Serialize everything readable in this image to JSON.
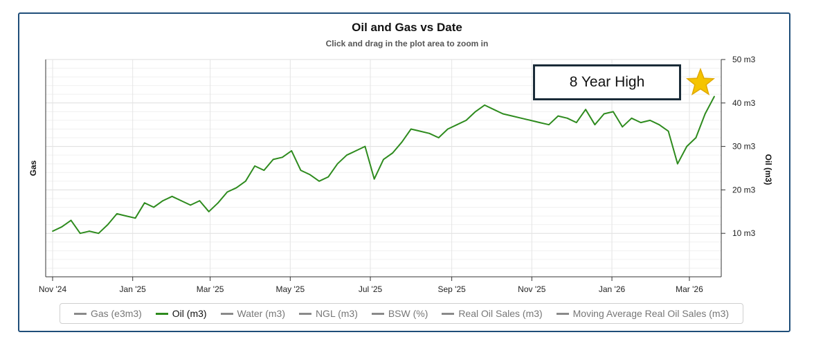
{
  "title": "Oil and Gas vs Date",
  "subtitle": "Click and drag in the plot area to zoom in",
  "callout": {
    "label": "8 Year High",
    "icon": "star-icon",
    "icon_color": "#f5c400"
  },
  "legend": [
    {
      "label": "Gas (e3m3)",
      "active": false
    },
    {
      "label": "Oil (m3)",
      "active": true
    },
    {
      "label": "Water (m3)",
      "active": false
    },
    {
      "label": "NGL (m3)",
      "active": false
    },
    {
      "label": "BSW (%)",
      "active": false
    },
    {
      "label": "Real Oil Sales (m3)",
      "active": false
    },
    {
      "label": "Moving Average Real Oil Sales (m3)",
      "active": false
    }
  ],
  "colors": {
    "oil": "#2e8b1e",
    "frame": "#1f4e79",
    "legend_inactive": "#8a8a8a"
  },
  "chart_data": {
    "type": "line",
    "title": "Oil and Gas vs Date",
    "subtitle": "Click and drag in the plot area to zoom in",
    "ylabel_left": "Gas",
    "ylabel_right": "Oil (m3)",
    "x_ticks": [
      "Nov '24",
      "Jan '25",
      "Mar '25",
      "May '25",
      "Jul '25",
      "Sep '25",
      "Nov '25",
      "Jan '26",
      "Mar '26"
    ],
    "y_right_ticks": [
      "10 m3",
      "20 m3",
      "30 m3",
      "40 m3",
      "50 m3"
    ],
    "ylim": [
      0,
      50
    ],
    "xlim": [
      "2024-11-01",
      "2026-03-20"
    ],
    "grid": true,
    "legend_position": "bottom",
    "series": [
      {
        "name": "Oil (m3)",
        "x": [
          "2024-11-01",
          "2024-11-08",
          "2024-11-15",
          "2024-11-22",
          "2024-11-29",
          "2024-12-06",
          "2024-12-13",
          "2024-12-20",
          "2024-12-27",
          "2025-01-03",
          "2025-01-10",
          "2025-01-17",
          "2025-01-24",
          "2025-01-31",
          "2025-02-07",
          "2025-02-14",
          "2025-02-21",
          "2025-02-28",
          "2025-03-07",
          "2025-03-14",
          "2025-03-21",
          "2025-03-28",
          "2025-04-04",
          "2025-04-11",
          "2025-04-18",
          "2025-04-25",
          "2025-05-02",
          "2025-05-09",
          "2025-05-16",
          "2025-05-23",
          "2025-05-30",
          "2025-06-06",
          "2025-06-13",
          "2025-06-20",
          "2025-06-27",
          "2025-07-04",
          "2025-07-11",
          "2025-07-18",
          "2025-07-25",
          "2025-08-01",
          "2025-08-08",
          "2025-08-15",
          "2025-08-22",
          "2025-08-29",
          "2025-09-05",
          "2025-09-12",
          "2025-09-19",
          "2025-09-26",
          "2025-10-03",
          "2025-10-10",
          "2025-10-17",
          "2025-10-24",
          "2025-10-31",
          "2025-11-07",
          "2025-11-14",
          "2025-11-21",
          "2025-11-28",
          "2025-12-05",
          "2025-12-12",
          "2025-12-19",
          "2025-12-26",
          "2026-01-02",
          "2026-01-09",
          "2026-01-16",
          "2026-01-23",
          "2026-01-30",
          "2026-02-06",
          "2026-02-13",
          "2026-02-20",
          "2026-02-27",
          "2026-03-06",
          "2026-03-13",
          "2026-03-20"
        ],
        "values": [
          10.5,
          11.5,
          13.0,
          10.0,
          10.5,
          10.0,
          12.0,
          14.5,
          14.0,
          13.5,
          17.0,
          16.0,
          17.5,
          18.5,
          17.5,
          16.5,
          17.5,
          15.0,
          17.0,
          19.5,
          20.5,
          22.0,
          25.5,
          24.5,
          27.0,
          27.5,
          29.0,
          24.5,
          23.5,
          22.0,
          23.0,
          26.0,
          28.0,
          29.0,
          30.0,
          22.5,
          27.0,
          28.5,
          31.0,
          34.0,
          33.5,
          33.0,
          32.0,
          34.0,
          35.0,
          36.0,
          38.0,
          39.5,
          38.5,
          37.5,
          37.0,
          36.5,
          36.0,
          35.5,
          35.0,
          37.0,
          36.5,
          35.5,
          38.5,
          35.0,
          37.5,
          38.0,
          34.5,
          36.5,
          35.5,
          36.0,
          35.0,
          33.5,
          26.0,
          30.0,
          32.0,
          37.5,
          41.5
        ]
      }
    ]
  }
}
